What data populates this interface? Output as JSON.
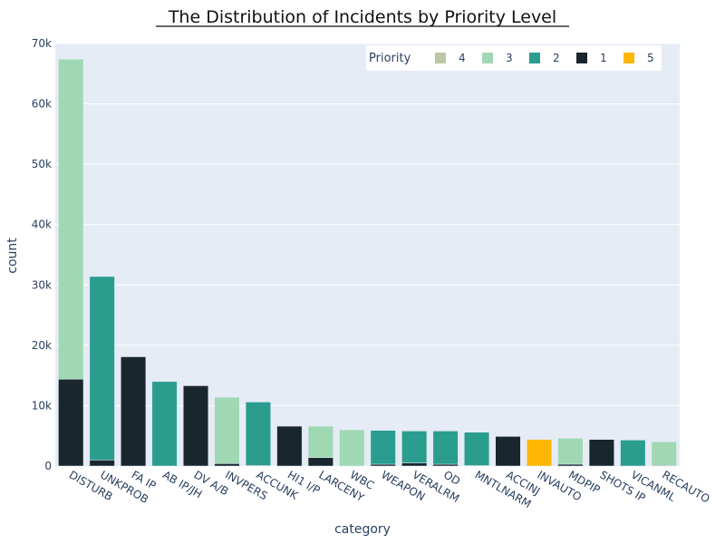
{
  "chart_data": {
    "type": "bar",
    "stacked": true,
    "title": "The Distribution of Incidents by Priority Level",
    "xlabel": "category",
    "ylabel": "count",
    "ylim": [
      0,
      70000
    ],
    "yticks": [
      0,
      10000,
      20000,
      30000,
      40000,
      50000,
      60000,
      70000
    ],
    "ytick_labels": [
      "0",
      "10k",
      "20k",
      "30k",
      "40k",
      "50k",
      "60k",
      "70k"
    ],
    "grid": true,
    "legend_title": "Priority",
    "legend_position": "top-right",
    "categories": [
      "DISTURB",
      "UNKPROB",
      "FA IP",
      "AB IP/JH",
      "DV A/B",
      "INVPERS",
      "ACCUNK",
      "HI1 I/P",
      "LARCENY",
      "WBC",
      "WEAPON",
      "VERALRM",
      "OD",
      "MNTLNARM",
      "ACCINJ",
      "INVAUTO",
      "MDPIP",
      "SHOTS IP",
      "VICANML",
      "RECAUTO"
    ],
    "series": [
      {
        "name": "4",
        "color": "#bcc7a6",
        "values": [
          0,
          0,
          0,
          0,
          0,
          0,
          0,
          0,
          0,
          0,
          0,
          0,
          0,
          0,
          0,
          0,
          0,
          0,
          0,
          0
        ]
      },
      {
        "name": "3",
        "color": "#a0d8b3",
        "values": [
          53000,
          0,
          0,
          0,
          0,
          11000,
          0,
          0,
          5200,
          6000,
          0,
          0,
          0,
          0,
          0,
          0,
          4300,
          0,
          0,
          3900
        ]
      },
      {
        "name": "2",
        "color": "#2a9d8f",
        "values": [
          0,
          30400,
          0,
          14000,
          0,
          0,
          10500,
          0,
          0,
          0,
          5600,
          5300,
          5500,
          5500,
          0,
          0,
          0,
          0,
          4300,
          0
        ]
      },
      {
        "name": "1",
        "color": "#1a262d",
        "values": [
          14400,
          1000,
          18100,
          0,
          13300,
          400,
          100,
          6600,
          1400,
          0,
          300,
          500,
          300,
          100,
          4900,
          0,
          300,
          4400,
          0,
          100
        ]
      },
      {
        "name": "5",
        "color": "#ffb703",
        "values": [
          0,
          0,
          0,
          0,
          0,
          0,
          0,
          0,
          0,
          0,
          0,
          0,
          0,
          0,
          0,
          4400,
          0,
          0,
          0,
          0
        ]
      }
    ],
    "stack_order": [
      "1",
      "2",
      "3",
      "4",
      "5"
    ]
  }
}
